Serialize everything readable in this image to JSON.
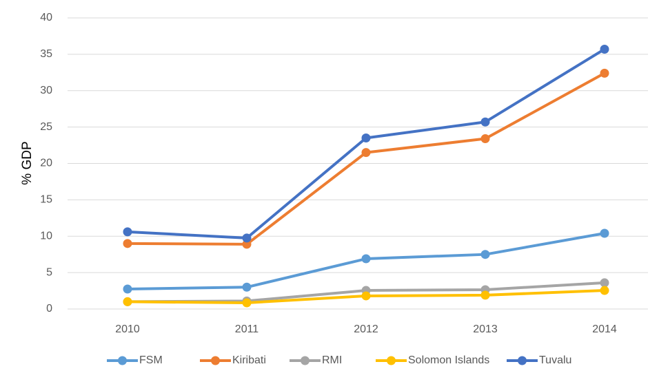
{
  "chart_data": {
    "type": "line",
    "y_label": "% GDP",
    "categories": [
      "2010",
      "2011",
      "2012",
      "2013",
      "2014"
    ],
    "series": [
      {
        "name": "FSM",
        "color": "#5b9bd5",
        "values": [
          2.74,
          3.0,
          6.9,
          7.5,
          10.4
        ]
      },
      {
        "name": "Kiribati",
        "color": "#ed7d31",
        "values": [
          9.0,
          8.9,
          21.5,
          23.4,
          32.4
        ]
      },
      {
        "name": "RMI",
        "color": "#a5a5a5",
        "values": [
          1.0,
          1.1,
          2.55,
          2.65,
          3.6
        ]
      },
      {
        "name": "Solomon Islands",
        "color": "#ffc000",
        "values": [
          1.0,
          0.85,
          1.8,
          1.9,
          2.55
        ]
      },
      {
        "name": "Tuvalu",
        "color": "#4472c4",
        "values": [
          10.6,
          9.75,
          23.5,
          25.7,
          35.7
        ]
      }
    ],
    "ylim": [
      0,
      40
    ],
    "yticks": [
      0,
      5,
      10,
      15,
      20,
      25,
      30,
      35,
      40
    ],
    "grid": true,
    "legend": "bottom"
  }
}
